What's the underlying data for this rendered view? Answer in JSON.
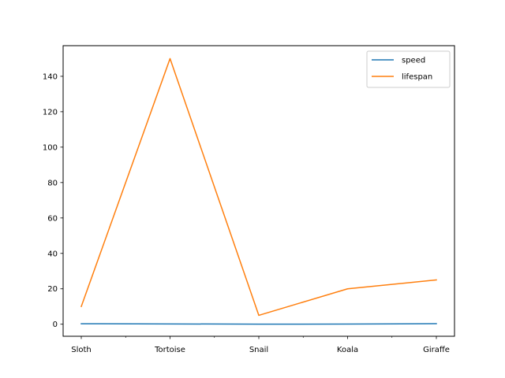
{
  "chart_data": {
    "type": "line",
    "title": "",
    "xlabel": "",
    "ylabel": "",
    "categories": [
      "Sloth",
      "Tortoise",
      "Snail",
      "Koala",
      "Giraffe"
    ],
    "x_minor_ticks": true,
    "ylim": [
      -6.8,
      157.3
    ],
    "yticks": [
      0,
      20,
      40,
      60,
      80,
      100,
      120,
      140
    ],
    "ytick_labels": [
      "0",
      "20",
      "40",
      "60",
      "80",
      "100",
      "120",
      "140"
    ],
    "grid": false,
    "legend_position": "top-right",
    "series": [
      {
        "name": "speed",
        "color": "#1f77b4",
        "values": [
          0.27,
          0.17,
          0.03,
          0.1,
          0.3
        ]
      },
      {
        "name": "lifespan",
        "color": "#ff7f0e",
        "values": [
          10,
          150,
          5,
          20,
          25
        ]
      }
    ]
  }
}
